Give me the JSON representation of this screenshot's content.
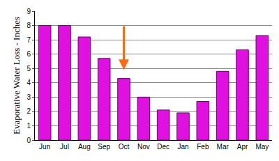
{
  "chart_data": {
    "type": "bar",
    "y_label": "Evaporative Water Loss - Inches",
    "categories": [
      "Jun",
      "Jul",
      "Aug",
      "Sep",
      "Oct",
      "Nov",
      "Dec",
      "Jan",
      "Feb",
      "Mar",
      "Apr",
      "May"
    ],
    "values": [
      8.0,
      8.0,
      7.2,
      5.7,
      4.3,
      3.0,
      2.1,
      1.9,
      2.7,
      4.8,
      6.3,
      7.3
    ],
    "color": "#e010e0",
    "ylim": [
      0,
      9
    ],
    "yticks": [
      0,
      1,
      2,
      3,
      4,
      5,
      6,
      7,
      8,
      9
    ],
    "grid": true
  }
}
